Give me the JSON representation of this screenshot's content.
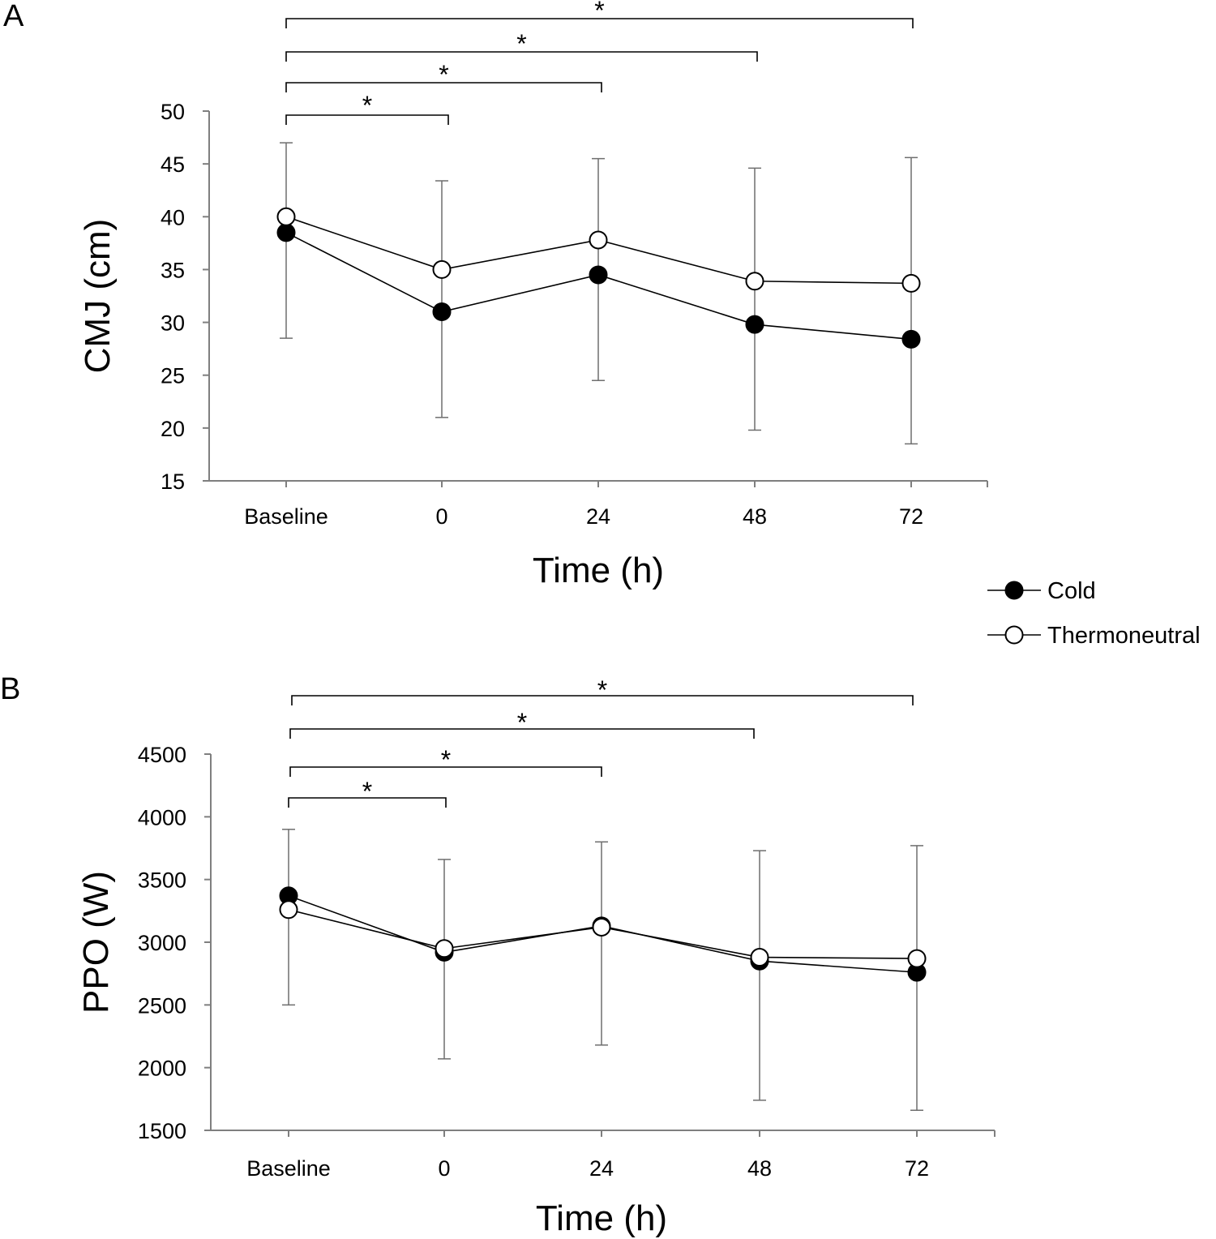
{
  "chart_data": [
    {
      "panel_label": "A",
      "type": "line",
      "title": "",
      "xlabel": "Time (h)",
      "ylabel": "CMJ (cm)",
      "categories": [
        "Baseline",
        "0",
        "24",
        "48",
        "72"
      ],
      "ylim": [
        15,
        50
      ],
      "yticks": [
        15,
        20,
        25,
        30,
        35,
        40,
        45,
        50
      ],
      "grid": false,
      "error_bars": [
        {
          "category": "Baseline",
          "low": 28.5,
          "high": 47
        },
        {
          "category": "0",
          "low": 21,
          "high": 43.4
        },
        {
          "category": "24",
          "low": 24.5,
          "high": 45.5
        },
        {
          "category": "48",
          "low": 19.8,
          "high": 44.6
        },
        {
          "category": "72",
          "low": 18.5,
          "high": 45.6
        }
      ],
      "series": [
        {
          "name": "Cold",
          "marker": "filled",
          "values": [
            38.5,
            31,
            34.5,
            29.8,
            28.4
          ]
        },
        {
          "name": "Thermoneutral",
          "marker": "open",
          "values": [
            40,
            35,
            37.8,
            33.9,
            33.7
          ]
        }
      ],
      "significance": [
        {
          "from": "Baseline",
          "to": "0",
          "label": "*"
        },
        {
          "from": "Baseline",
          "to": "24",
          "label": "*"
        },
        {
          "from": "Baseline",
          "to": "48",
          "label": "*"
        },
        {
          "from": "Baseline",
          "to": "72",
          "label": "*"
        }
      ]
    },
    {
      "panel_label": "B",
      "type": "line",
      "title": "",
      "xlabel": "Time (h)",
      "ylabel": "PPO (W)",
      "categories": [
        "Baseline",
        "0",
        "24",
        "48",
        "72"
      ],
      "ylim": [
        1500,
        4500
      ],
      "yticks": [
        1500,
        2000,
        2500,
        3000,
        3500,
        4000,
        4500
      ],
      "grid": false,
      "error_bars": [
        {
          "category": "Baseline",
          "low": 2500,
          "high": 3900
        },
        {
          "category": "0",
          "low": 2070,
          "high": 3660
        },
        {
          "category": "24",
          "low": 2180,
          "high": 3800
        },
        {
          "category": "48",
          "low": 1740,
          "high": 3730
        },
        {
          "category": "72",
          "low": 1660,
          "high": 3770
        }
      ],
      "series": [
        {
          "name": "Cold",
          "marker": "filled",
          "values": [
            3370,
            2920,
            3130,
            2850,
            2760
          ]
        },
        {
          "name": "Thermoneutral",
          "marker": "open",
          "values": [
            3260,
            2950,
            3120,
            2880,
            2870
          ]
        }
      ],
      "significance": [
        {
          "from": "Baseline",
          "to": "0",
          "label": "*"
        },
        {
          "from": "Baseline",
          "to": "24",
          "label": "*"
        },
        {
          "from": "Baseline",
          "to": "48",
          "label": "*"
        },
        {
          "from": "Baseline",
          "to": "72",
          "label": "*"
        }
      ]
    }
  ],
  "legend": {
    "entries": [
      {
        "name": "Cold",
        "marker": "filled"
      },
      {
        "name": "Thermoneutral",
        "marker": "open"
      }
    ]
  }
}
